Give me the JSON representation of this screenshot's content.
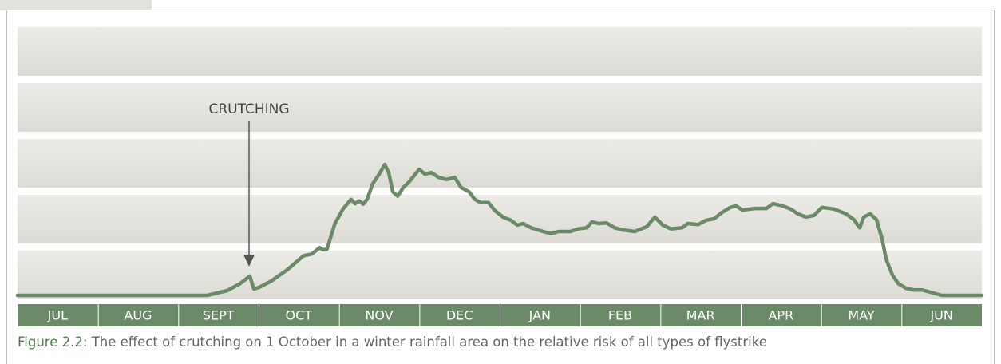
{
  "chart_data": {
    "type": "line",
    "annotation": "CRUTCHING",
    "caption_label": "Figure 2.2:",
    "caption": "The effect of crutching on 1 October in a winter rainfall area on the relative risk of all types of flystrike",
    "categories": [
      "JUL",
      "AUG",
      "SEPT",
      "OCT",
      "NOV",
      "DEC",
      "JAN",
      "FEB",
      "MAR",
      "APR",
      "MAY",
      "JUN"
    ],
    "xlim": [
      0,
      12
    ],
    "ylim": [
      0,
      5
    ],
    "x": [
      0,
      2.36,
      2.61,
      2.76,
      2.84,
      2.89,
      2.94,
      3.01,
      3.16,
      3.36,
      3.56,
      3.66,
      3.76,
      3.8,
      3.85,
      3.95,
      4.05,
      4.15,
      4.2,
      4.25,
      4.3,
      4.35,
      4.42,
      4.5,
      4.57,
      4.62,
      4.67,
      4.73,
      4.8,
      4.87,
      4.95,
      5.0,
      5.07,
      5.15,
      5.24,
      5.34,
      5.44,
      5.52,
      5.62,
      5.69,
      5.76,
      5.86,
      5.94,
      6.04,
      6.14,
      6.22,
      6.29,
      6.39,
      6.54,
      6.64,
      6.73,
      6.88,
      6.98,
      7.08,
      7.15,
      7.23,
      7.33,
      7.43,
      7.53,
      7.68,
      7.83,
      7.93,
      8.03,
      8.13,
      8.27,
      8.34,
      8.47,
      8.57,
      8.67,
      8.77,
      8.87,
      8.94,
      9.02,
      9.17,
      9.32,
      9.4,
      9.52,
      9.62,
      9.71,
      9.81,
      9.91,
      10.01,
      10.16,
      10.31,
      10.41,
      10.48,
      10.53,
      10.61,
      10.69,
      10.76,
      10.81,
      10.89,
      10.96,
      11.06,
      11.16,
      11.26,
      11.36,
      11.5,
      12
    ],
    "series": [
      {
        "name": "Relative risk",
        "color": "#6b8a67",
        "values": [
          0,
          0,
          0.09,
          0.21,
          0.3,
          0.36,
          0.12,
          0.15,
          0.27,
          0.48,
          0.74,
          0.77,
          0.89,
          0.85,
          0.86,
          1.34,
          1.61,
          1.79,
          1.71,
          1.76,
          1.7,
          1.79,
          2.08,
          2.26,
          2.44,
          2.28,
          1.93,
          1.85,
          2.01,
          2.11,
          2.26,
          2.35,
          2.26,
          2.29,
          2.2,
          2.16,
          2.2,
          2.01,
          1.93,
          1.79,
          1.73,
          1.73,
          1.58,
          1.46,
          1.4,
          1.31,
          1.34,
          1.26,
          1.19,
          1.15,
          1.19,
          1.19,
          1.24,
          1.26,
          1.37,
          1.34,
          1.35,
          1.26,
          1.22,
          1.19,
          1.28,
          1.46,
          1.31,
          1.24,
          1.26,
          1.34,
          1.32,
          1.4,
          1.43,
          1.55,
          1.64,
          1.67,
          1.59,
          1.62,
          1.62,
          1.71,
          1.67,
          1.61,
          1.52,
          1.46,
          1.49,
          1.64,
          1.61,
          1.52,
          1.41,
          1.26,
          1.46,
          1.52,
          1.41,
          1.04,
          0.67,
          0.37,
          0.22,
          0.13,
          0.1,
          0.1,
          0.06,
          0,
          0
        ]
      }
    ]
  }
}
